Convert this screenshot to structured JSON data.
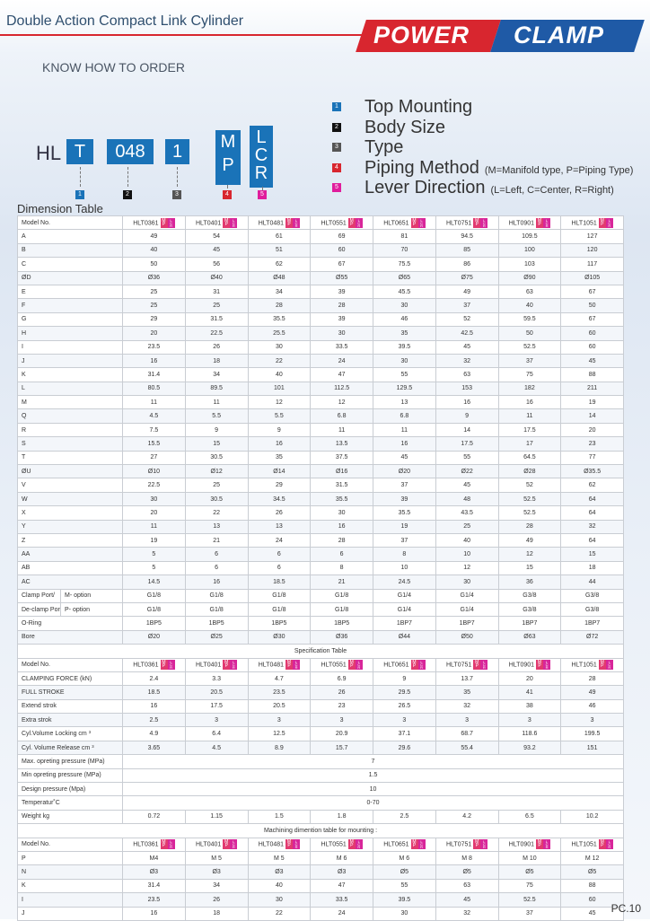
{
  "header": {
    "title": "Double Action Compact Link Cylinder",
    "logo_left": "POWER",
    "logo_right": "CLAMP"
  },
  "order": {
    "subtitle": "KNOW HOW TO ORDER",
    "prefix": "HL",
    "code_t": "T",
    "code_size": "048",
    "code_type": "1",
    "code_piping": [
      "M",
      "P"
    ],
    "code_lever": [
      "L",
      "C",
      "R"
    ],
    "tags": [
      "1",
      "2",
      "3",
      "4",
      "5"
    ],
    "legend": [
      {
        "num": "1",
        "text": "Top Mounting",
        "note": "",
        "color": "#1a73b8"
      },
      {
        "num": "2",
        "text": "Body Size",
        "note": "",
        "color": "#111111"
      },
      {
        "num": "3",
        "text": "Type",
        "note": "",
        "color": "#555555"
      },
      {
        "num": "4",
        "text": "Piping Method",
        "note": "(M=Manifold type, P=Piping Type)",
        "color": "#d8262f"
      },
      {
        "num": "5",
        "text": "Lever Direction",
        "note": "(L=Left, C=Center, R=Right)",
        "color": "#e01d9c"
      }
    ]
  },
  "colors": {
    "accent_blue": "#1a73b8",
    "accent_red": "#d8262f",
    "accent_pink": "#e01d9c"
  },
  "dimension": {
    "label": "Dimension Table",
    "model_label": "Model No.",
    "models": [
      "HLT0361",
      "HLT0401",
      "HLT0481",
      "HLT0551",
      "HLT0651",
      "HLT0751",
      "HLT0901",
      "HLT1051"
    ],
    "rows": [
      {
        "label": "A",
        "values": [
          "49",
          "54",
          "61",
          "69",
          "81",
          "94.5",
          "109.5",
          "127"
        ]
      },
      {
        "label": "B",
        "values": [
          "40",
          "45",
          "51",
          "60",
          "70",
          "85",
          "100",
          "120"
        ]
      },
      {
        "label": "C",
        "values": [
          "50",
          "56",
          "62",
          "67",
          "75.5",
          "86",
          "103",
          "117"
        ]
      },
      {
        "label": "ØD",
        "values": [
          "Ø36",
          "Ø40",
          "Ø48",
          "Ø55",
          "Ø65",
          "Ø75",
          "Ø90",
          "Ø105"
        ]
      },
      {
        "label": "E",
        "values": [
          "25",
          "31",
          "34",
          "39",
          "45.5",
          "49",
          "63",
          "67"
        ]
      },
      {
        "label": "F",
        "values": [
          "25",
          "25",
          "28",
          "28",
          "30",
          "37",
          "40",
          "50"
        ]
      },
      {
        "label": "G",
        "values": [
          "29",
          "31.5",
          "35.5",
          "39",
          "46",
          "52",
          "59.5",
          "67"
        ]
      },
      {
        "label": "H",
        "values": [
          "20",
          "22.5",
          "25.5",
          "30",
          "35",
          "42.5",
          "50",
          "60"
        ]
      },
      {
        "label": "I",
        "values": [
          "23.5",
          "26",
          "30",
          "33.5",
          "39.5",
          "45",
          "52.5",
          "60"
        ]
      },
      {
        "label": "J",
        "values": [
          "16",
          "18",
          "22",
          "24",
          "30",
          "32",
          "37",
          "45"
        ]
      },
      {
        "label": "K",
        "values": [
          "31.4",
          "34",
          "40",
          "47",
          "55",
          "63",
          "75",
          "88"
        ]
      },
      {
        "label": "L",
        "values": [
          "80.5",
          "89.5",
          "101",
          "112.5",
          "129.5",
          "153",
          "182",
          "211"
        ]
      },
      {
        "label": "M",
        "values": [
          "11",
          "11",
          "12",
          "12",
          "13",
          "16",
          "16",
          "19"
        ]
      },
      {
        "label": "Q",
        "values": [
          "4.5",
          "5.5",
          "5.5",
          "6.8",
          "6.8",
          "9",
          "11",
          "14"
        ]
      },
      {
        "label": "R",
        "values": [
          "7.5",
          "9",
          "9",
          "11",
          "11",
          "14",
          "17.5",
          "20"
        ]
      },
      {
        "label": "S",
        "values": [
          "15.5",
          "15",
          "16",
          "13.5",
          "16",
          "17.5",
          "17",
          "23"
        ]
      },
      {
        "label": "T",
        "values": [
          "27",
          "30.5",
          "35",
          "37.5",
          "45",
          "55",
          "64.5",
          "77"
        ]
      },
      {
        "label": "ØU",
        "values": [
          "Ø10",
          "Ø12",
          "Ø14",
          "Ø16",
          "Ø20",
          "Ø22",
          "Ø28",
          "Ø35.5"
        ]
      },
      {
        "label": "V",
        "values": [
          "22.5",
          "25",
          "29",
          "31.5",
          "37",
          "45",
          "52",
          "62"
        ]
      },
      {
        "label": "W",
        "values": [
          "30",
          "30.5",
          "34.5",
          "35.5",
          "39",
          "48",
          "52.5",
          "64"
        ]
      },
      {
        "label": "X",
        "values": [
          "20",
          "22",
          "26",
          "30",
          "35.5",
          "43.5",
          "52.5",
          "64"
        ]
      },
      {
        "label": "Y",
        "values": [
          "11",
          "13",
          "13",
          "16",
          "19",
          "25",
          "28",
          "32"
        ]
      },
      {
        "label": "Z",
        "values": [
          "19",
          "21",
          "24",
          "28",
          "37",
          "40",
          "49",
          "64"
        ]
      },
      {
        "label": "AA",
        "values": [
          "5",
          "6",
          "6",
          "6",
          "8",
          "10",
          "12",
          "15"
        ]
      },
      {
        "label": "AB",
        "values": [
          "5",
          "6",
          "6",
          "8",
          "10",
          "12",
          "15",
          "18"
        ]
      },
      {
        "label": "AC",
        "values": [
          "14.5",
          "16",
          "18.5",
          "21",
          "24.5",
          "30",
          "36",
          "44"
        ]
      }
    ],
    "port_rows": [
      {
        "label": "Clamp Port/",
        "sub": "M- option",
        "values": [
          "G1/8",
          "G1/8",
          "G1/8",
          "G1/8",
          "G1/4",
          "G1/4",
          "G3/8",
          "G3/8"
        ]
      },
      {
        "label": "De-clamp Port",
        "sub": "P- option",
        "values": [
          "G1/8",
          "G1/8",
          "G1/8",
          "G1/8",
          "G1/4",
          "G1/4",
          "G3/8",
          "G3/8"
        ]
      }
    ],
    "tail_rows": [
      {
        "label": "O-Ring",
        "values": [
          "1BP5",
          "1BP5",
          "1BP5",
          "1BP5",
          "1BP7",
          "1BP7",
          "1BP7",
          "1BP7"
        ]
      },
      {
        "label": "Bore",
        "values": [
          "Ø20",
          "Ø25",
          "Ø30",
          "Ø36",
          "Ø44",
          "Ø50",
          "Ø63",
          "Ø72"
        ]
      }
    ]
  },
  "spec": {
    "label": "Specification Table",
    "rows": [
      {
        "label": "CLAMPING FORCE  (kN)",
        "values": [
          "2.4",
          "3.3",
          "4.7",
          "6.9",
          "9",
          "13.7",
          "20",
          "28"
        ]
      },
      {
        "label": "FULL STROKE",
        "values": [
          "18.5",
          "20.5",
          "23.5",
          "26",
          "29.5",
          "35",
          "41",
          "49"
        ]
      },
      {
        "label": "Extend strok",
        "values": [
          "16",
          "17.5",
          "20.5",
          "23",
          "26.5",
          "32",
          "38",
          "46"
        ]
      },
      {
        "label": "Extra strok",
        "values": [
          "2.5",
          "3",
          "3",
          "3",
          "3",
          "3",
          "3",
          "3"
        ]
      },
      {
        "label": "Cyl.Volume Locking cm ³",
        "values": [
          "4.9",
          "6.4",
          "12.5",
          "20.9",
          "37.1",
          "68.7",
          "118.6",
          "199.5"
        ]
      },
      {
        "label": "Cyl. Volume Release cm ³",
        "values": [
          "3.65",
          "4.5",
          "8.9",
          "15.7",
          "29.6",
          "55.4",
          "93.2",
          "151"
        ]
      }
    ],
    "merged_rows": [
      {
        "label": "Max. opreting pressure (MPa)",
        "value": "7"
      },
      {
        "label": "Min opreting pressure (MPa)",
        "value": "1.5"
      },
      {
        "label": "Design pressure (Mpa)",
        "value": "10"
      },
      {
        "label": "Temperatur˚C",
        "value": "0-70"
      }
    ],
    "weight": {
      "label": "Weight kg",
      "values": [
        "0.72",
        "1.15",
        "1.5",
        "1.8",
        "2.5",
        "4.2",
        "6.5",
        "10.2"
      ]
    }
  },
  "machining": {
    "label": "Machining dimention table for mounting :",
    "rows": [
      {
        "label": "P",
        "values": [
          "M4",
          "M 5",
          "M 5",
          "M 6",
          "M 6",
          "M 8",
          "M 10",
          "M 12"
        ]
      },
      {
        "label": "N",
        "values": [
          "Ø3",
          "Ø3",
          "Ø3",
          "Ø3",
          "Ø5",
          "Ø5",
          "Ø5",
          "Ø5"
        ]
      },
      {
        "label": "K",
        "values": [
          "31.4",
          "34",
          "40",
          "47",
          "55",
          "63",
          "75",
          "88"
        ]
      },
      {
        "label": "I",
        "values": [
          "23.5",
          "26",
          "30",
          "33.5",
          "39.5",
          "45",
          "52.5",
          "60"
        ]
      },
      {
        "label": "J",
        "values": [
          "16",
          "18",
          "22",
          "24",
          "30",
          "32",
          "37",
          "45"
        ]
      }
    ]
  },
  "footer": {
    "page": "PC.10"
  }
}
